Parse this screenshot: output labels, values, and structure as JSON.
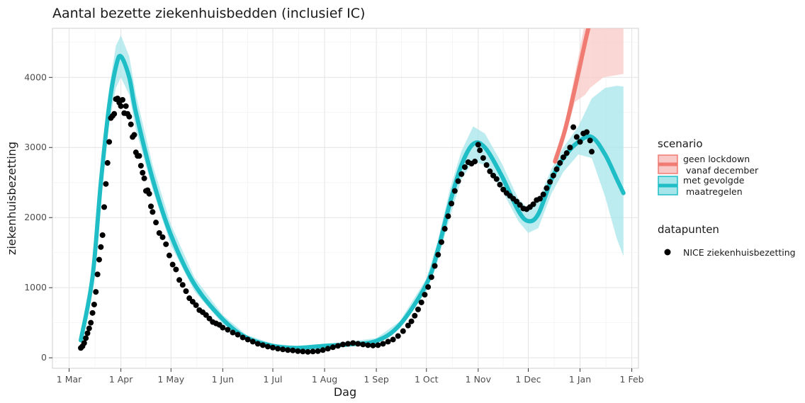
{
  "chart_data": {
    "type": "line",
    "title": "Aantal bezette ziekenhuisbedden (inclusief IC)",
    "xlabel": "Dag",
    "ylabel": "ziekenhuisbezetting",
    "x_range": [
      "2020-02-20",
      "2021-02-05"
    ],
    "ylim": [
      -150,
      4700
    ],
    "grid": true,
    "x_ticks": [
      {
        "date": "2020-03-01",
        "label": "1 Mar"
      },
      {
        "date": "2020-04-01",
        "label": "1 Apr"
      },
      {
        "date": "2020-05-01",
        "label": "1 May"
      },
      {
        "date": "2020-06-01",
        "label": "1 Jun"
      },
      {
        "date": "2020-07-01",
        "label": "1 Jul"
      },
      {
        "date": "2020-08-01",
        "label": "1 Aug"
      },
      {
        "date": "2020-09-01",
        "label": "1 Sep"
      },
      {
        "date": "2020-10-01",
        "label": "1 Oct"
      },
      {
        "date": "2020-11-01",
        "label": "1 Nov"
      },
      {
        "date": "2020-12-01",
        "label": "1 Dec"
      },
      {
        "date": "2021-01-01",
        "label": "1 Jan"
      },
      {
        "date": "2021-02-01",
        "label": "1 Feb"
      }
    ],
    "y_ticks": [
      0,
      1000,
      2000,
      3000,
      4000
    ],
    "legend": {
      "title": "scenario",
      "placement": "right",
      "items": [
        {
          "lines": [
            "geen lockdown",
            "vanaf december"
          ],
          "color": "#f07b72",
          "fill": "#f8c9c6"
        },
        {
          "lines": [
            "met gevolgde",
            "maatregelen"
          ],
          "color": "#1fbec6",
          "fill": "#a6e6ea"
        }
      ],
      "points_title": "datapunten",
      "points_label": "NICE ziekenhuisbezetting"
    },
    "series": [
      {
        "name": "met gevolgde maatregelen",
        "color": "#1fbec6",
        "band_fill": "#a6e6ea",
        "x": [
          "2020-03-08",
          "2020-03-15",
          "2020-03-20",
          "2020-03-25",
          "2020-03-29",
          "2020-04-01",
          "2020-04-06",
          "2020-04-10",
          "2020-04-20",
          "2020-05-01",
          "2020-05-15",
          "2020-06-01",
          "2020-06-15",
          "2020-07-01",
          "2020-07-15",
          "2020-08-01",
          "2020-08-15",
          "2020-09-01",
          "2020-09-15",
          "2020-10-01",
          "2020-10-08",
          "2020-10-15",
          "2020-10-22",
          "2020-10-29",
          "2020-11-05",
          "2020-11-15",
          "2020-11-25",
          "2020-12-01",
          "2020-12-07",
          "2020-12-15",
          "2020-12-22",
          "2020-12-31",
          "2021-01-08",
          "2021-01-16",
          "2021-01-23",
          "2021-01-27"
        ],
        "y": [
          250,
          1150,
          2500,
          3600,
          4150,
          4300,
          4000,
          3500,
          2550,
          1750,
          1050,
          550,
          290,
          170,
          140,
          170,
          190,
          240,
          470,
          1050,
          1550,
          2200,
          2750,
          3050,
          3000,
          2600,
          2100,
          1950,
          2050,
          2550,
          2850,
          3080,
          3150,
          2900,
          2550,
          2350
        ],
        "band_lower": [
          220,
          1050,
          2300,
          3350,
          3850,
          4000,
          3750,
          3250,
          2400,
          1600,
          950,
          480,
          240,
          140,
          110,
          130,
          160,
          210,
          420,
          950,
          1400,
          2000,
          2550,
          2800,
          2750,
          2400,
          1950,
          1780,
          1850,
          2350,
          2650,
          2900,
          2850,
          2300,
          1700,
          1450
        ],
        "band_upper": [
          280,
          1250,
          2700,
          3850,
          4450,
          4600,
          4300,
          3750,
          2750,
          1900,
          1150,
          610,
          330,
          200,
          170,
          200,
          230,
          280,
          520,
          1130,
          1680,
          2400,
          2950,
          3300,
          3200,
          2780,
          2270,
          2130,
          2250,
          2700,
          3000,
          3300,
          3700,
          3850,
          3880,
          3870
        ]
      },
      {
        "name": "geen lockdown vanaf december",
        "color": "#f07b72",
        "band_fill": "#f8c9c6",
        "x": [
          "2020-12-17",
          "2020-12-23",
          "2020-12-29",
          "2021-01-04",
          "2021-01-07"
        ],
        "y": [
          2800,
          3250,
          3850,
          4500,
          4800
        ],
        "band_lower": [
          2750,
          3150,
          3650,
          3750,
          3850
        ],
        "band_upper": [
          2850,
          3350,
          4050,
          4800,
          5200
        ]
      },
      {
        "name": "geen lockdown vanaf december (band)",
        "color": "#f07b72",
        "band_fill": "#f8c9c6",
        "x": [
          "2021-01-07",
          "2021-01-15",
          "2021-01-27"
        ],
        "y": [
          4800,
          5100,
          5400
        ],
        "band_lower": [
          3850,
          4000,
          4050
        ],
        "band_upper": [
          5200,
          5400,
          5600
        ]
      },
      {
        "name": "NICE ziekenhuisbezetting",
        "color": "#000000",
        "points": [
          [
            "2020-03-08",
            140
          ],
          [
            "2020-03-09",
            165
          ],
          [
            "2020-03-10",
            210
          ],
          [
            "2020-03-11",
            280
          ],
          [
            "2020-03-12",
            350
          ],
          [
            "2020-03-13",
            420
          ],
          [
            "2020-03-14",
            500
          ],
          [
            "2020-03-15",
            640
          ],
          [
            "2020-03-16",
            760
          ],
          [
            "2020-03-17",
            940
          ],
          [
            "2020-03-18",
            1190
          ],
          [
            "2020-03-19",
            1400
          ],
          [
            "2020-03-20",
            1580
          ],
          [
            "2020-03-21",
            1750
          ],
          [
            "2020-03-22",
            2150
          ],
          [
            "2020-03-23",
            2480
          ],
          [
            "2020-03-24",
            2780
          ],
          [
            "2020-03-25",
            3080
          ],
          [
            "2020-03-26",
            3420
          ],
          [
            "2020-03-27",
            3450
          ],
          [
            "2020-03-28",
            3480
          ],
          [
            "2020-03-29",
            3690
          ],
          [
            "2020-03-30",
            3700
          ],
          [
            "2020-03-31",
            3640
          ],
          [
            "2020-04-01",
            3590
          ],
          [
            "2020-04-02",
            3680
          ],
          [
            "2020-04-03",
            3490
          ],
          [
            "2020-04-04",
            3590
          ],
          [
            "2020-04-05",
            3480
          ],
          [
            "2020-04-06",
            3440
          ],
          [
            "2020-04-07",
            3330
          ],
          [
            "2020-04-08",
            3150
          ],
          [
            "2020-04-09",
            3180
          ],
          [
            "2020-04-10",
            2930
          ],
          [
            "2020-04-11",
            2880
          ],
          [
            "2020-04-12",
            2880
          ],
          [
            "2020-04-13",
            2740
          ],
          [
            "2020-04-14",
            2640
          ],
          [
            "2020-04-15",
            2560
          ],
          [
            "2020-04-16",
            2380
          ],
          [
            "2020-04-17",
            2390
          ],
          [
            "2020-04-18",
            2340
          ],
          [
            "2020-04-19",
            2160
          ],
          [
            "2020-04-20",
            2080
          ],
          [
            "2020-04-22",
            1930
          ],
          [
            "2020-04-24",
            1780
          ],
          [
            "2020-04-26",
            1720
          ],
          [
            "2020-04-28",
            1620
          ],
          [
            "2020-04-30",
            1460
          ],
          [
            "2020-05-02",
            1330
          ],
          [
            "2020-05-04",
            1260
          ],
          [
            "2020-05-06",
            1110
          ],
          [
            "2020-05-08",
            1040
          ],
          [
            "2020-05-10",
            950
          ],
          [
            "2020-05-12",
            850
          ],
          [
            "2020-05-14",
            800
          ],
          [
            "2020-05-16",
            750
          ],
          [
            "2020-05-18",
            680
          ],
          [
            "2020-05-20",
            650
          ],
          [
            "2020-05-22",
            610
          ],
          [
            "2020-05-24",
            560
          ],
          [
            "2020-05-26",
            510
          ],
          [
            "2020-05-28",
            490
          ],
          [
            "2020-05-30",
            470
          ],
          [
            "2020-06-01",
            430
          ],
          [
            "2020-06-04",
            400
          ],
          [
            "2020-06-07",
            360
          ],
          [
            "2020-06-10",
            330
          ],
          [
            "2020-06-13",
            290
          ],
          [
            "2020-06-16",
            260
          ],
          [
            "2020-06-19",
            230
          ],
          [
            "2020-06-22",
            200
          ],
          [
            "2020-06-25",
            180
          ],
          [
            "2020-06-28",
            160
          ],
          [
            "2020-07-01",
            145
          ],
          [
            "2020-07-04",
            130
          ],
          [
            "2020-07-07",
            120
          ],
          [
            "2020-07-10",
            110
          ],
          [
            "2020-07-13",
            105
          ],
          [
            "2020-07-16",
            95
          ],
          [
            "2020-07-19",
            90
          ],
          [
            "2020-07-22",
            85
          ],
          [
            "2020-07-25",
            90
          ],
          [
            "2020-07-28",
            95
          ],
          [
            "2020-07-31",
            110
          ],
          [
            "2020-08-03",
            130
          ],
          [
            "2020-08-06",
            150
          ],
          [
            "2020-08-09",
            170
          ],
          [
            "2020-08-12",
            190
          ],
          [
            "2020-08-15",
            200
          ],
          [
            "2020-08-18",
            210
          ],
          [
            "2020-08-21",
            200
          ],
          [
            "2020-08-24",
            190
          ],
          [
            "2020-08-27",
            180
          ],
          [
            "2020-08-30",
            175
          ],
          [
            "2020-09-02",
            180
          ],
          [
            "2020-09-05",
            200
          ],
          [
            "2020-09-08",
            230
          ],
          [
            "2020-09-11",
            260
          ],
          [
            "2020-09-14",
            310
          ],
          [
            "2020-09-17",
            380
          ],
          [
            "2020-09-20",
            460
          ],
          [
            "2020-09-22",
            520
          ],
          [
            "2020-09-24",
            600
          ],
          [
            "2020-09-26",
            690
          ],
          [
            "2020-09-28",
            790
          ],
          [
            "2020-09-30",
            900
          ],
          [
            "2020-10-02",
            1010
          ],
          [
            "2020-10-04",
            1150
          ],
          [
            "2020-10-06",
            1310
          ],
          [
            "2020-10-08",
            1470
          ],
          [
            "2020-10-10",
            1650
          ],
          [
            "2020-10-12",
            1840
          ],
          [
            "2020-10-14",
            2020
          ],
          [
            "2020-10-16",
            2200
          ],
          [
            "2020-10-18",
            2380
          ],
          [
            "2020-10-20",
            2520
          ],
          [
            "2020-10-22",
            2620
          ],
          [
            "2020-10-24",
            2720
          ],
          [
            "2020-10-26",
            2790
          ],
          [
            "2020-10-28",
            2770
          ],
          [
            "2020-10-30",
            2800
          ],
          [
            "2020-11-01",
            3040
          ],
          [
            "2020-11-02",
            2960
          ],
          [
            "2020-11-04",
            2850
          ],
          [
            "2020-11-06",
            2750
          ],
          [
            "2020-11-08",
            2660
          ],
          [
            "2020-11-10",
            2600
          ],
          [
            "2020-11-12",
            2550
          ],
          [
            "2020-11-14",
            2470
          ],
          [
            "2020-11-16",
            2400
          ],
          [
            "2020-11-18",
            2350
          ],
          [
            "2020-11-20",
            2310
          ],
          [
            "2020-11-22",
            2270
          ],
          [
            "2020-11-24",
            2230
          ],
          [
            "2020-11-26",
            2180
          ],
          [
            "2020-11-28",
            2130
          ],
          [
            "2020-11-30",
            2120
          ],
          [
            "2020-12-02",
            2150
          ],
          [
            "2020-12-04",
            2190
          ],
          [
            "2020-12-06",
            2250
          ],
          [
            "2020-12-08",
            2270
          ],
          [
            "2020-12-10",
            2330
          ],
          [
            "2020-12-12",
            2420
          ],
          [
            "2020-12-14",
            2510
          ],
          [
            "2020-12-16",
            2600
          ],
          [
            "2020-12-18",
            2690
          ],
          [
            "2020-12-20",
            2780
          ],
          [
            "2020-12-22",
            2860
          ],
          [
            "2020-12-24",
            2920
          ],
          [
            "2020-12-26",
            3000
          ],
          [
            "2020-12-28",
            3290
          ],
          [
            "2020-12-30",
            3150
          ],
          [
            "2021-01-01",
            3080
          ],
          [
            "2021-01-03",
            3200
          ],
          [
            "2021-01-05",
            3220
          ],
          [
            "2021-01-07",
            3100
          ],
          [
            "2021-01-08",
            2940
          ]
        ]
      }
    ]
  }
}
